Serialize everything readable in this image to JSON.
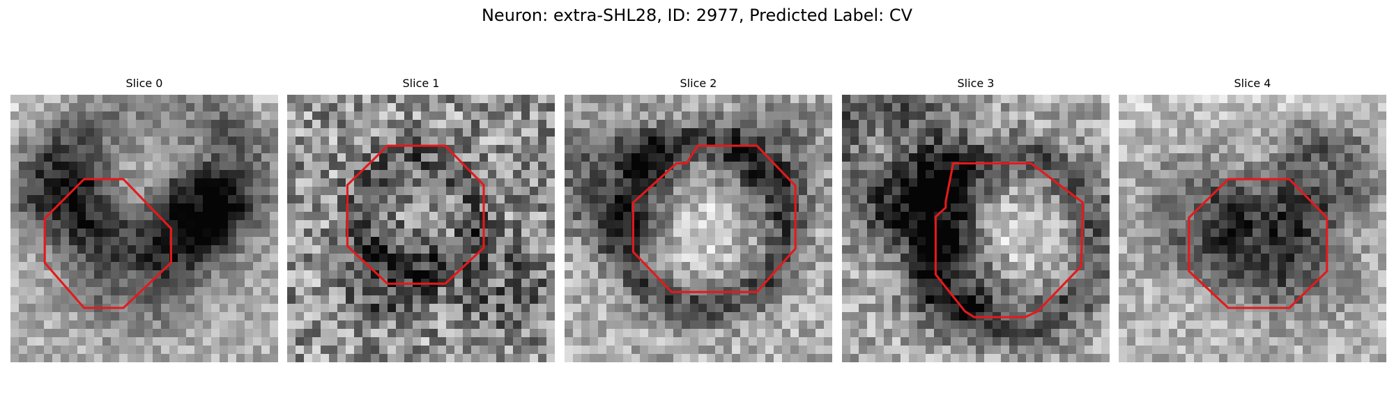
{
  "figure": {
    "title": "Neuron: extra-SHL28, ID: 2977, Predicted Label: CV"
  },
  "slices": [
    {
      "title": "Slice 0"
    },
    {
      "title": "Slice 1"
    },
    {
      "title": "Slice 2"
    },
    {
      "title": "Slice 3"
    },
    {
      "title": "Slice 4"
    }
  ],
  "colors": {
    "outline": "#e31a1c",
    "colormap": "grayscale"
  }
}
